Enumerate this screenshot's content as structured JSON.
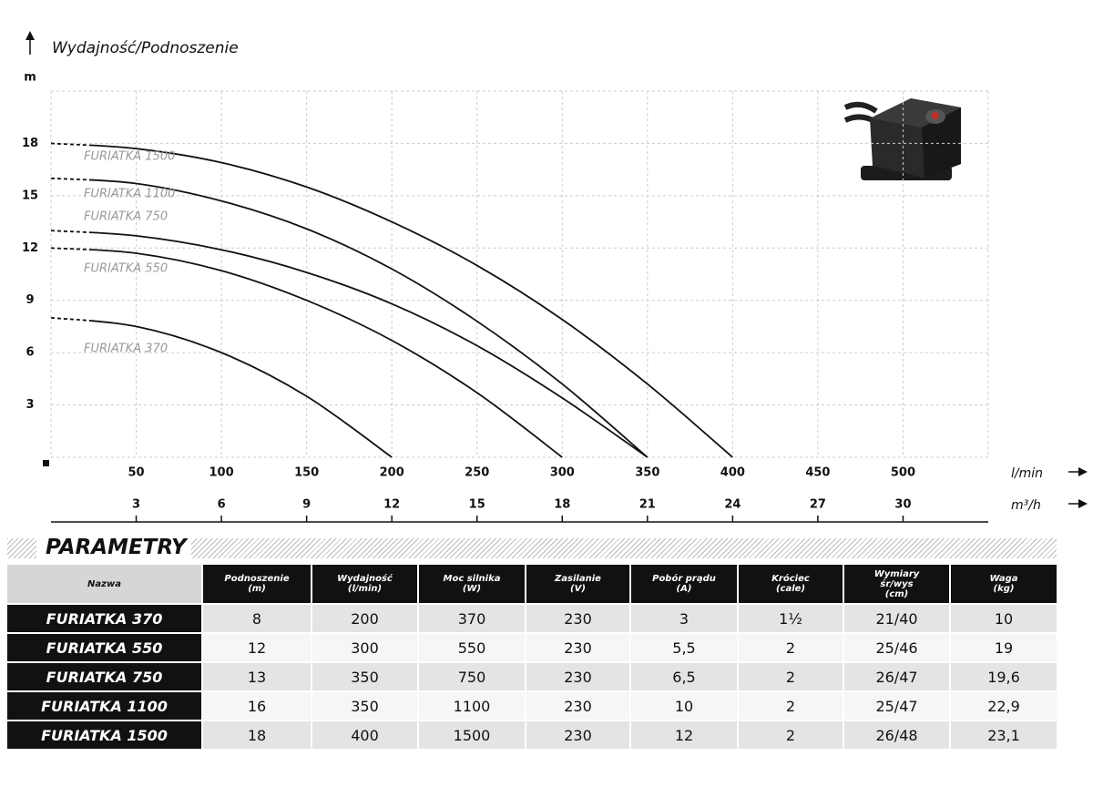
{
  "chart_data": {
    "type": "line",
    "ylabel": "Wydajność/Podnoszenie",
    "yunit": "m",
    "xlabel": "l/min",
    "x2label": "m³/h",
    "xlim": [
      0,
      550
    ],
    "xticks": [
      50,
      100,
      150,
      200,
      250,
      300,
      350,
      400,
      450,
      500
    ],
    "x2lim": [
      0,
      33
    ],
    "x2ticks": [
      3,
      6,
      9,
      12,
      15,
      18,
      21,
      24,
      27,
      30
    ],
    "ylim": [
      0,
      21
    ],
    "yticks": [
      3,
      6,
      9,
      12,
      15,
      18
    ],
    "grid": true,
    "series": [
      {
        "name": "FURIATKA 1500",
        "color": "#111111",
        "x": [
          0,
          50,
          100,
          150,
          200,
          250,
          300,
          350,
          400
        ],
        "values": [
          18,
          17.7,
          16.9,
          15.5,
          13.5,
          11,
          7.9,
          4.2,
          0
        ]
      },
      {
        "name": "FURIATKA 1100",
        "color": "#111111",
        "x": [
          0,
          50,
          100,
          150,
          200,
          250,
          300,
          350
        ],
        "values": [
          16,
          15.7,
          14.7,
          13.1,
          10.8,
          7.8,
          4.2,
          0
        ]
      },
      {
        "name": "FURIATKA 750",
        "color": "#111111",
        "x": [
          0,
          50,
          100,
          150,
          200,
          250,
          300,
          350
        ],
        "values": [
          13,
          12.7,
          11.9,
          10.6,
          8.8,
          6.4,
          3.4,
          0
        ]
      },
      {
        "name": "FURIATKA 550",
        "color": "#111111",
        "x": [
          0,
          50,
          100,
          150,
          200,
          250,
          300
        ],
        "values": [
          12,
          11.7,
          10.7,
          9,
          6.7,
          3.7,
          0
        ]
      },
      {
        "name": "FURIATKA 370",
        "color": "#111111",
        "x": [
          0,
          50,
          100,
          150,
          200
        ],
        "values": [
          8,
          7.5,
          6,
          3.5,
          0
        ]
      }
    ]
  },
  "table": {
    "title": "PARAMETRY",
    "columns": [
      "Nazwa",
      "Podnoszenie\n(m)",
      "Wydajność\n(l/min)",
      "Moc silnika\n(W)",
      "Zasilanie\n(V)",
      "Pobór prądu\n(A)",
      "Króciec\n(cale)",
      "Wymiary\nśr/wys\n(cm)",
      "Waga\n(kg)"
    ],
    "rows": [
      [
        "FURIATKA 370",
        "8",
        "200",
        "370",
        "230",
        "3",
        "1½",
        "21/40",
        "10"
      ],
      [
        "FURIATKA 550",
        "12",
        "300",
        "550",
        "230",
        "5,5",
        "2",
        "25/46",
        "19"
      ],
      [
        "FURIATKA 750",
        "13",
        "350",
        "750",
        "230",
        "6,5",
        "2",
        "26/47",
        "19,6"
      ],
      [
        "FURIATKA 1100",
        "16",
        "350",
        "1100",
        "230",
        "10",
        "2",
        "25/47",
        "22,9"
      ],
      [
        "FURIATKA 1500",
        "18",
        "400",
        "1500",
        "230",
        "12",
        "2",
        "26/48",
        "23,1"
      ]
    ]
  }
}
